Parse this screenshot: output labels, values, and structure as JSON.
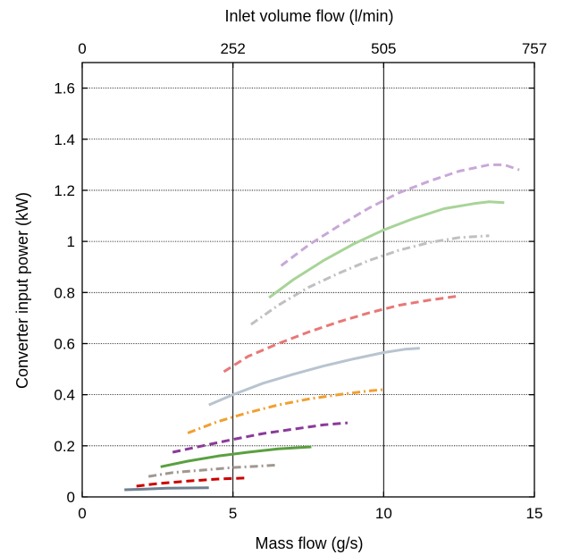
{
  "chart_data": {
    "type": "line",
    "title": "",
    "xlabel": "Mass flow (g/s)",
    "ylabel": "Converter input power (kW)",
    "x2label": "Inlet volume flow (l/min)",
    "xlim": [
      0,
      15
    ],
    "ylim": [
      0,
      1.7
    ],
    "x_ticks": [
      0,
      5,
      10,
      15
    ],
    "x_tick_labels": [
      "0",
      "5",
      "10",
      "15"
    ],
    "y_ticks": [
      0,
      0.2,
      0.4,
      0.6,
      0.8,
      1,
      1.2,
      1.4,
      1.6
    ],
    "y_tick_labels": [
      "0",
      "0.2",
      "0.4",
      "0.6",
      "0.8",
      "1",
      "1.2",
      "1.4",
      "1.6"
    ],
    "x2_ticks": [
      0,
      5.0,
      10.0,
      15.0
    ],
    "x2_tick_labels": [
      "0",
      "252",
      "505",
      "757"
    ],
    "grid": true,
    "legend": "none",
    "series": [
      {
        "color": "#708090",
        "dash": "solid",
        "points": [
          [
            1.4,
            0.028
          ],
          [
            2.0,
            0.03
          ],
          [
            2.8,
            0.034
          ],
          [
            3.5,
            0.035
          ],
          [
            4.2,
            0.036
          ]
        ]
      },
      {
        "color": "#cc0000",
        "dash": "dashed",
        "points": [
          [
            1.8,
            0.042
          ],
          [
            2.5,
            0.052
          ],
          [
            3.5,
            0.062
          ],
          [
            4.5,
            0.07
          ],
          [
            5.4,
            0.074
          ]
        ]
      },
      {
        "color": "#a09890",
        "dash": "dashdot",
        "points": [
          [
            2.2,
            0.08
          ],
          [
            3.0,
            0.095
          ],
          [
            4.0,
            0.105
          ],
          [
            5.0,
            0.115
          ],
          [
            5.8,
            0.12
          ],
          [
            6.5,
            0.125
          ]
        ]
      },
      {
        "color": "#5aa040",
        "dash": "solid",
        "points": [
          [
            2.6,
            0.118
          ],
          [
            3.5,
            0.14
          ],
          [
            4.5,
            0.16
          ],
          [
            5.5,
            0.175
          ],
          [
            6.5,
            0.188
          ],
          [
            7.6,
            0.196
          ]
        ]
      },
      {
        "color": "#8b3a9a",
        "dash": "dashed",
        "points": [
          [
            3.0,
            0.175
          ],
          [
            4.0,
            0.2
          ],
          [
            5.0,
            0.225
          ],
          [
            6.0,
            0.248
          ],
          [
            7.0,
            0.265
          ],
          [
            8.0,
            0.282
          ],
          [
            8.8,
            0.29
          ]
        ]
      },
      {
        "color": "#f0a030",
        "dash": "dashdot",
        "points": [
          [
            3.5,
            0.25
          ],
          [
            4.5,
            0.295
          ],
          [
            5.5,
            0.33
          ],
          [
            6.5,
            0.36
          ],
          [
            7.5,
            0.383
          ],
          [
            8.5,
            0.4
          ],
          [
            9.5,
            0.415
          ],
          [
            10.0,
            0.42
          ]
        ]
      },
      {
        "color": "#b8c4d0",
        "dash": "solid",
        "points": [
          [
            4.2,
            0.36
          ],
          [
            5.0,
            0.4
          ],
          [
            6.0,
            0.445
          ],
          [
            7.0,
            0.48
          ],
          [
            8.0,
            0.512
          ],
          [
            9.0,
            0.54
          ],
          [
            10.0,
            0.565
          ],
          [
            10.7,
            0.578
          ],
          [
            11.2,
            0.582
          ]
        ]
      },
      {
        "color": "#e87878",
        "dash": "dashed",
        "points": [
          [
            4.7,
            0.49
          ],
          [
            5.5,
            0.55
          ],
          [
            6.5,
            0.6
          ],
          [
            7.5,
            0.645
          ],
          [
            8.5,
            0.685
          ],
          [
            9.5,
            0.72
          ],
          [
            10.5,
            0.75
          ],
          [
            11.5,
            0.77
          ],
          [
            12.4,
            0.785
          ]
        ]
      },
      {
        "color": "#c0c0c0",
        "dash": "dashdot",
        "points": [
          [
            5.6,
            0.675
          ],
          [
            6.5,
            0.75
          ],
          [
            7.5,
            0.82
          ],
          [
            8.5,
            0.875
          ],
          [
            9.5,
            0.925
          ],
          [
            10.5,
            0.965
          ],
          [
            11.5,
            0.995
          ],
          [
            12.5,
            1.015
          ],
          [
            13.5,
            1.022
          ]
        ]
      },
      {
        "color": "#a8d498",
        "dash": "solid",
        "points": [
          [
            6.2,
            0.78
          ],
          [
            7.0,
            0.85
          ],
          [
            8.0,
            0.925
          ],
          [
            9.0,
            0.99
          ],
          [
            10.0,
            1.045
          ],
          [
            11.0,
            1.09
          ],
          [
            12.0,
            1.128
          ],
          [
            13.0,
            1.148
          ],
          [
            13.5,
            1.155
          ],
          [
            14.0,
            1.152
          ]
        ]
      },
      {
        "color": "#c8a8d8",
        "dash": "dashed",
        "points": [
          [
            6.6,
            0.905
          ],
          [
            7.5,
            0.985
          ],
          [
            8.5,
            1.06
          ],
          [
            9.5,
            1.13
          ],
          [
            10.5,
            1.19
          ],
          [
            11.5,
            1.235
          ],
          [
            12.5,
            1.275
          ],
          [
            13.5,
            1.3
          ],
          [
            14.0,
            1.3
          ],
          [
            14.5,
            1.28
          ]
        ]
      }
    ]
  }
}
